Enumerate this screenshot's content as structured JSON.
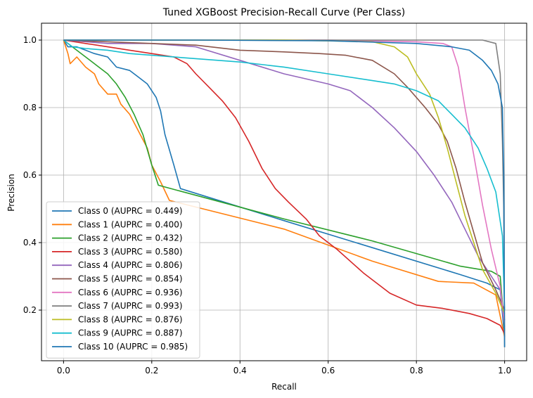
{
  "chart_data": {
    "type": "line",
    "title": "Tuned XGBoost Precision-Recall Curve (Per Class)",
    "xlabel": "Recall",
    "ylabel": "Precision",
    "xlim": [
      -0.05,
      1.05
    ],
    "ylim": [
      0.05,
      1.05
    ],
    "xticks": [
      "0.0",
      "0.2",
      "0.4",
      "0.6",
      "0.8",
      "1.0"
    ],
    "yticks": [
      "0.2",
      "0.4",
      "0.6",
      "0.8",
      "1.0"
    ],
    "grid": true,
    "legend_position": "lower-left",
    "series": [
      {
        "name": "Class 0 (AUPRC = 0.449)",
        "color": "#1f77b4",
        "points": [
          [
            0,
            1.0
          ],
          [
            0.01,
            0.98
          ],
          [
            0.03,
            0.98
          ],
          [
            0.05,
            0.97
          ],
          [
            0.07,
            0.96
          ],
          [
            0.1,
            0.95
          ],
          [
            0.12,
            0.92
          ],
          [
            0.15,
            0.91
          ],
          [
            0.17,
            0.89
          ],
          [
            0.19,
            0.87
          ],
          [
            0.21,
            0.83
          ],
          [
            0.22,
            0.79
          ],
          [
            0.23,
            0.72
          ],
          [
            0.25,
            0.63
          ],
          [
            0.265,
            0.56
          ],
          [
            0.5,
            0.465
          ],
          [
            0.7,
            0.385
          ],
          [
            0.9,
            0.305
          ],
          [
            0.96,
            0.28
          ],
          [
            0.99,
            0.26
          ],
          [
            1.0,
            0.12
          ]
        ]
      },
      {
        "name": "Class 1 (AUPRC = 0.400)",
        "color": "#ff7f0e",
        "points": [
          [
            0,
            1.0
          ],
          [
            0.01,
            0.96
          ],
          [
            0.015,
            0.93
          ],
          [
            0.03,
            0.95
          ],
          [
            0.05,
            0.92
          ],
          [
            0.07,
            0.9
          ],
          [
            0.08,
            0.87
          ],
          [
            0.1,
            0.84
          ],
          [
            0.12,
            0.84
          ],
          [
            0.13,
            0.81
          ],
          [
            0.15,
            0.78
          ],
          [
            0.17,
            0.73
          ],
          [
            0.19,
            0.68
          ],
          [
            0.2,
            0.63
          ],
          [
            0.22,
            0.58
          ],
          [
            0.24,
            0.525
          ],
          [
            0.5,
            0.44
          ],
          [
            0.7,
            0.345
          ],
          [
            0.85,
            0.285
          ],
          [
            0.93,
            0.28
          ],
          [
            0.98,
            0.245
          ],
          [
            1.0,
            0.12
          ]
        ]
      },
      {
        "name": "Class 2 (AUPRC = 0.432)",
        "color": "#2ca02c",
        "points": [
          [
            0,
            1.0
          ],
          [
            0.02,
            0.98
          ],
          [
            0.04,
            0.96
          ],
          [
            0.06,
            0.94
          ],
          [
            0.08,
            0.92
          ],
          [
            0.1,
            0.9
          ],
          [
            0.12,
            0.87
          ],
          [
            0.14,
            0.83
          ],
          [
            0.16,
            0.78
          ],
          [
            0.18,
            0.72
          ],
          [
            0.2,
            0.63
          ],
          [
            0.215,
            0.57
          ],
          [
            0.5,
            0.47
          ],
          [
            0.7,
            0.405
          ],
          [
            0.9,
            0.33
          ],
          [
            0.97,
            0.315
          ],
          [
            0.99,
            0.3
          ],
          [
            1.0,
            0.14
          ]
        ]
      },
      {
        "name": "Class 3 (AUPRC = 0.580)",
        "color": "#d62728",
        "points": [
          [
            0,
            1.0
          ],
          [
            0.05,
            0.99
          ],
          [
            0.1,
            0.98
          ],
          [
            0.15,
            0.97
          ],
          [
            0.2,
            0.96
          ],
          [
            0.25,
            0.95
          ],
          [
            0.28,
            0.93
          ],
          [
            0.3,
            0.9
          ],
          [
            0.33,
            0.86
          ],
          [
            0.36,
            0.82
          ],
          [
            0.39,
            0.77
          ],
          [
            0.42,
            0.7
          ],
          [
            0.45,
            0.62
          ],
          [
            0.48,
            0.56
          ],
          [
            0.51,
            0.52
          ],
          [
            0.55,
            0.47
          ],
          [
            0.58,
            0.42
          ],
          [
            0.62,
            0.38
          ],
          [
            0.68,
            0.31
          ],
          [
            0.74,
            0.25
          ],
          [
            0.8,
            0.215
          ],
          [
            0.86,
            0.205
          ],
          [
            0.92,
            0.19
          ],
          [
            0.96,
            0.175
          ],
          [
            0.99,
            0.155
          ],
          [
            1.0,
            0.13
          ]
        ]
      },
      {
        "name": "Class 4 (AUPRC = 0.806)",
        "color": "#9467bd",
        "points": [
          [
            0,
            1.0
          ],
          [
            0.1,
            0.99
          ],
          [
            0.2,
            0.99
          ],
          [
            0.3,
            0.98
          ],
          [
            0.4,
            0.94
          ],
          [
            0.5,
            0.9
          ],
          [
            0.6,
            0.87
          ],
          [
            0.65,
            0.85
          ],
          [
            0.7,
            0.8
          ],
          [
            0.75,
            0.74
          ],
          [
            0.8,
            0.67
          ],
          [
            0.84,
            0.6
          ],
          [
            0.88,
            0.52
          ],
          [
            0.91,
            0.44
          ],
          [
            0.94,
            0.36
          ],
          [
            0.97,
            0.3
          ],
          [
            0.99,
            0.26
          ],
          [
            1.0,
            0.17
          ]
        ]
      },
      {
        "name": "Class 5 (AUPRC = 0.854)",
        "color": "#8c564b",
        "points": [
          [
            0,
            1.0
          ],
          [
            0.1,
            0.995
          ],
          [
            0.2,
            0.99
          ],
          [
            0.3,
            0.985
          ],
          [
            0.4,
            0.97
          ],
          [
            0.5,
            0.965
          ],
          [
            0.58,
            0.96
          ],
          [
            0.64,
            0.955
          ],
          [
            0.7,
            0.94
          ],
          [
            0.75,
            0.9
          ],
          [
            0.78,
            0.86
          ],
          [
            0.82,
            0.8
          ],
          [
            0.85,
            0.75
          ],
          [
            0.87,
            0.7
          ],
          [
            0.89,
            0.62
          ],
          [
            0.91,
            0.52
          ],
          [
            0.93,
            0.43
          ],
          [
            0.95,
            0.34
          ],
          [
            0.98,
            0.26
          ],
          [
            1.0,
            0.2
          ]
        ]
      },
      {
        "name": "Class 6 (AUPRC = 0.936)",
        "color": "#e377c2",
        "points": [
          [
            0,
            1.0
          ],
          [
            0.3,
            1.0
          ],
          [
            0.6,
            1.0
          ],
          [
            0.8,
            0.995
          ],
          [
            0.86,
            0.99
          ],
          [
            0.88,
            0.98
          ],
          [
            0.895,
            0.92
          ],
          [
            0.91,
            0.8
          ],
          [
            0.93,
            0.66
          ],
          [
            0.95,
            0.51
          ],
          [
            0.97,
            0.38
          ],
          [
            0.99,
            0.27
          ],
          [
            1.0,
            0.15
          ]
        ]
      },
      {
        "name": "Class 7 (AUPRC = 0.993)",
        "color": "#7f7f7f",
        "points": [
          [
            0,
            1.0
          ],
          [
            0.2,
            1.0
          ],
          [
            0.5,
            1.0
          ],
          [
            0.8,
            1.0
          ],
          [
            0.95,
            1.0
          ],
          [
            0.98,
            0.99
          ],
          [
            0.99,
            0.9
          ],
          [
            0.995,
            0.7
          ],
          [
            0.998,
            0.5
          ],
          [
            1.0,
            0.09
          ]
        ]
      },
      {
        "name": "Class 8 (AUPRC = 0.876)",
        "color": "#bcbd22",
        "points": [
          [
            0,
            1.0
          ],
          [
            0.2,
            1.0
          ],
          [
            0.5,
            1.0
          ],
          [
            0.7,
            0.995
          ],
          [
            0.75,
            0.98
          ],
          [
            0.78,
            0.95
          ],
          [
            0.8,
            0.9
          ],
          [
            0.83,
            0.84
          ],
          [
            0.85,
            0.77
          ],
          [
            0.87,
            0.68
          ],
          [
            0.89,
            0.58
          ],
          [
            0.91,
            0.48
          ],
          [
            0.93,
            0.4
          ],
          [
            0.95,
            0.32
          ],
          [
            0.98,
            0.25
          ],
          [
            1.0,
            0.19
          ]
        ]
      },
      {
        "name": "Class 9 (AUPRC = 0.887)",
        "color": "#17becf",
        "points": [
          [
            0,
            1.0
          ],
          [
            0.02,
            0.98
          ],
          [
            0.05,
            0.975
          ],
          [
            0.1,
            0.97
          ],
          [
            0.15,
            0.96
          ],
          [
            0.2,
            0.955
          ],
          [
            0.3,
            0.945
          ],
          [
            0.4,
            0.935
          ],
          [
            0.5,
            0.92
          ],
          [
            0.6,
            0.9
          ],
          [
            0.7,
            0.88
          ],
          [
            0.75,
            0.87
          ],
          [
            0.8,
            0.85
          ],
          [
            0.85,
            0.82
          ],
          [
            0.88,
            0.78
          ],
          [
            0.91,
            0.74
          ],
          [
            0.94,
            0.68
          ],
          [
            0.96,
            0.62
          ],
          [
            0.98,
            0.55
          ],
          [
            0.995,
            0.42
          ],
          [
            1.0,
            0.2
          ]
        ]
      },
      {
        "name": "Class 10 (AUPRC = 0.985)",
        "color": "#1f77b4",
        "points": [
          [
            0,
            1.0
          ],
          [
            0.3,
            1.0
          ],
          [
            0.6,
            0.998
          ],
          [
            0.8,
            0.99
          ],
          [
            0.88,
            0.98
          ],
          [
            0.92,
            0.97
          ],
          [
            0.95,
            0.94
          ],
          [
            0.97,
            0.91
          ],
          [
            0.985,
            0.87
          ],
          [
            0.995,
            0.8
          ],
          [
            0.998,
            0.6
          ],
          [
            1.0,
            0.09
          ]
        ]
      }
    ]
  }
}
